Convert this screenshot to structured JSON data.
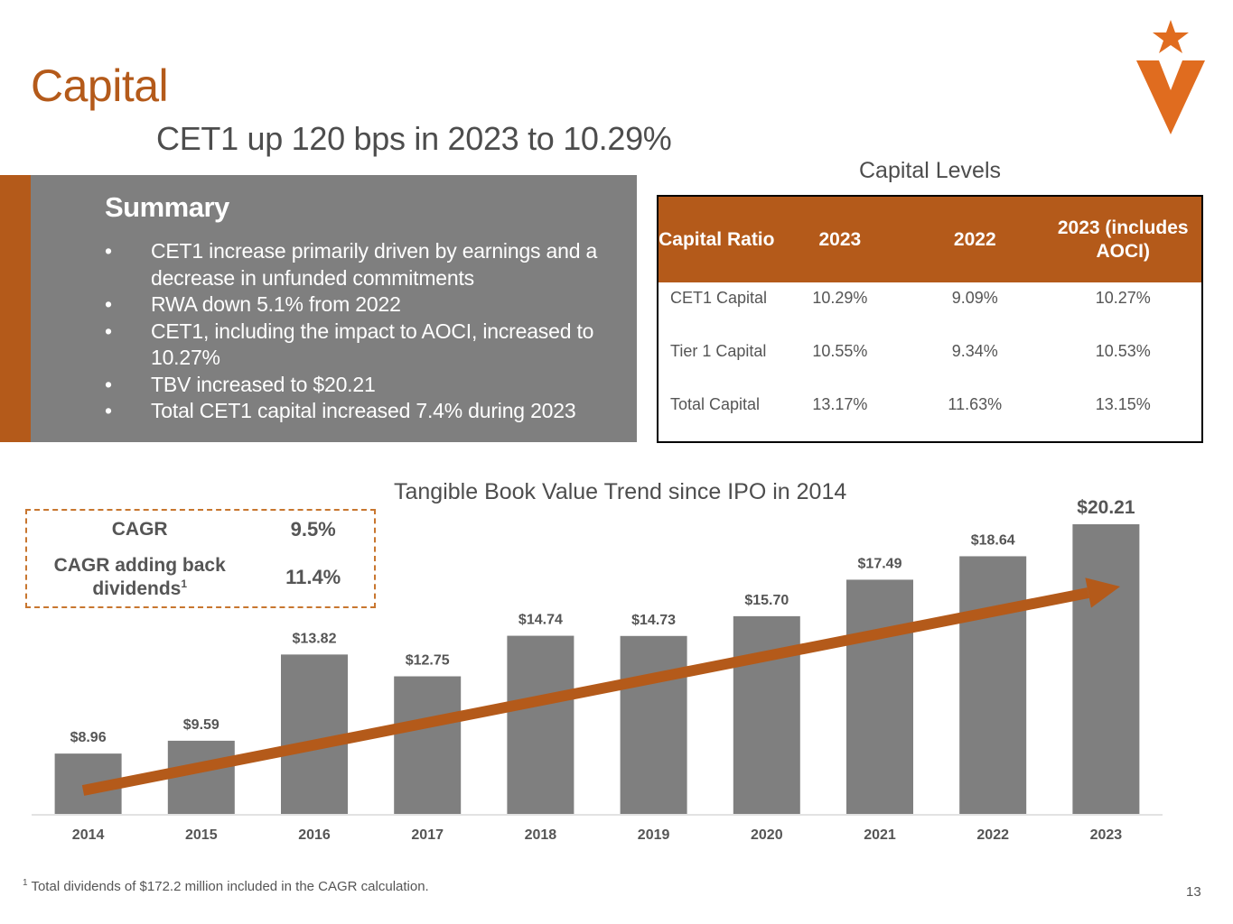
{
  "header": {
    "title": "Capital",
    "subtitle": "CET1 up 120 bps in 2023 to 10.29%"
  },
  "brand": {
    "logo_icon": "star-v-logo-icon",
    "accent_color": "#b45a1a",
    "logo_color": "#e06c1f",
    "panel_color": "#7f7f7f",
    "bar_color": "#7f7f7f"
  },
  "summary": {
    "heading": "Summary",
    "bullet_glyph": "•",
    "items": [
      "CET1 increase primarily driven by earnings and a decrease in unfunded commitments",
      "RWA down 5.1% from 2022",
      "CET1, including the impact to AOCI, increased to 10.27%",
      "TBV increased to $20.21",
      "Total CET1 capital increased 7.4% during 2023"
    ]
  },
  "capital_levels": {
    "title": "Capital Levels",
    "headers": [
      "Capital Ratio",
      "2023",
      "2022",
      "2023 (includes AOCI)"
    ],
    "rows": [
      {
        "label": "CET1 Capital",
        "values": [
          "10.29%",
          "9.09%",
          "10.27%"
        ]
      },
      {
        "label": "Tier 1 Capital",
        "values": [
          "10.55%",
          "9.34%",
          "10.53%"
        ]
      },
      {
        "label": "Total Capital",
        "values": [
          "13.17%",
          "11.63%",
          "13.15%"
        ]
      }
    ]
  },
  "cagr": {
    "rows": [
      {
        "label": "CAGR",
        "footnote": "",
        "value": "9.5%"
      },
      {
        "label": "CAGR adding back dividends",
        "footnote": "1",
        "value": "11.4%"
      }
    ]
  },
  "chart_data": {
    "type": "bar",
    "title": "Tangible Book Value Trend since IPO in 2014",
    "xlabel": "",
    "ylabel": "",
    "categories": [
      "2014",
      "2015",
      "2016",
      "2017",
      "2018",
      "2019",
      "2020",
      "2021",
      "2022",
      "2023"
    ],
    "values": [
      8.96,
      9.59,
      13.82,
      12.75,
      14.74,
      14.73,
      15.7,
      17.49,
      18.64,
      20.21
    ],
    "data_labels": [
      "$8.96",
      "$9.59",
      "$13.82",
      "$12.75",
      "$14.74",
      "$14.73",
      "$15.70",
      "$17.49",
      "$18.64",
      "$20.21"
    ],
    "ylim": [
      6,
      20.21
    ],
    "grid": false,
    "y_axis_visible": false,
    "annotations": [
      {
        "type": "trend-arrow",
        "label": "",
        "from_category": "2014",
        "to_category": "2023",
        "color": "#b45a1a"
      }
    ]
  },
  "footer": {
    "footnote_marker": "1",
    "footnote": "Total dividends of $172.2 million included in the CAGR calculation.",
    "page_number": "13"
  }
}
